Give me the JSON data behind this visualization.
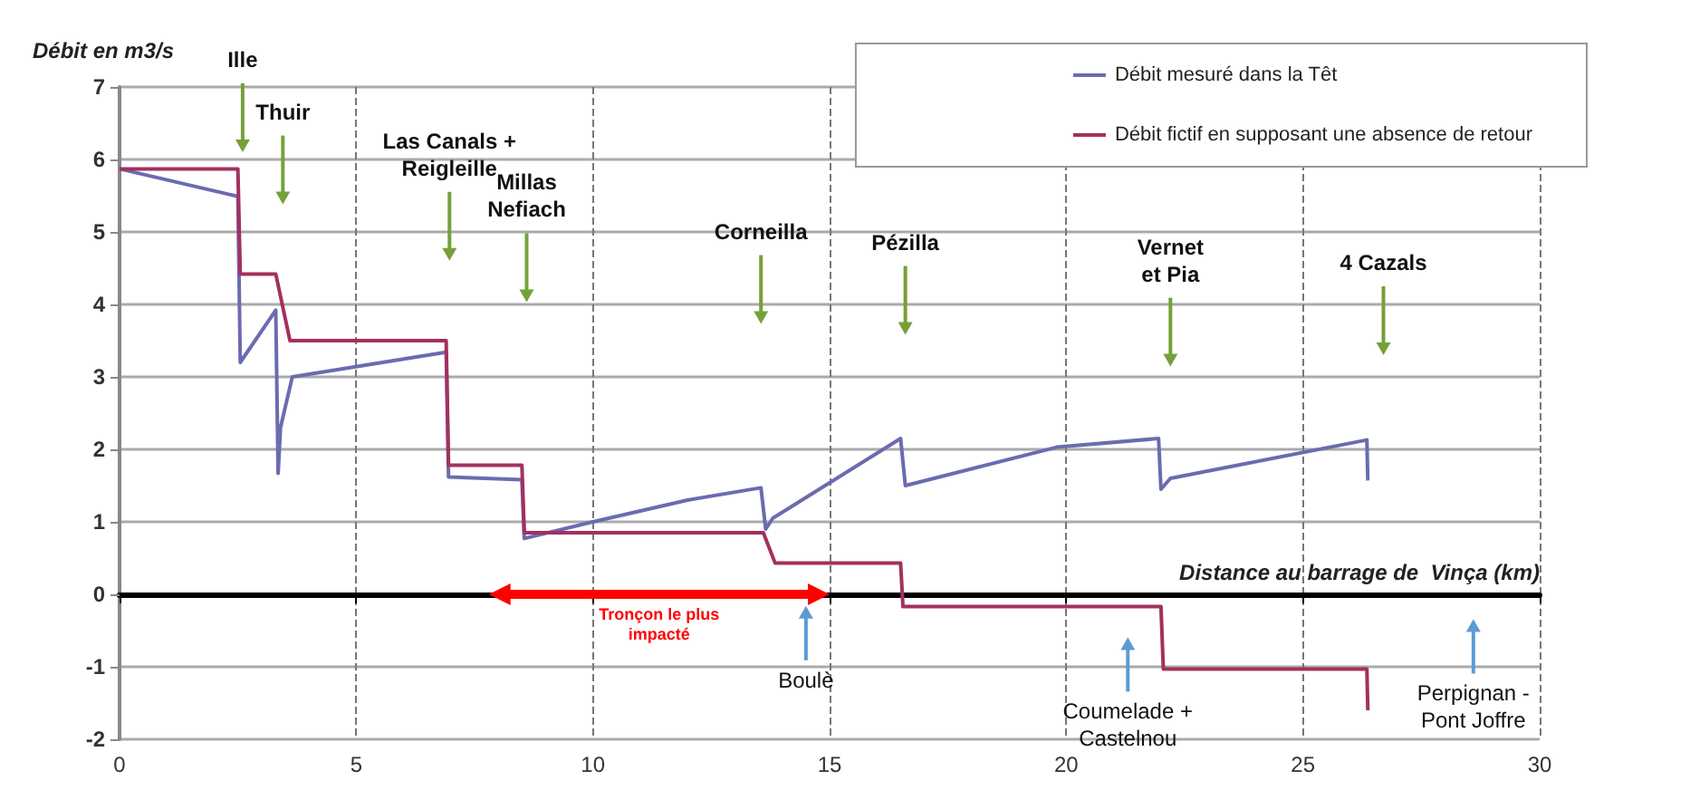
{
  "chart_data": {
    "type": "line",
    "ylabel": "Débit en m3/s",
    "xlabel": "Distance au barrage de  Vinça (km)",
    "xlim": [
      0,
      30
    ],
    "xticks": [
      0,
      5,
      10,
      15,
      20,
      25,
      30
    ],
    "ylim": [
      -2,
      7
    ],
    "yticks": [
      -2,
      -1,
      0,
      1,
      2,
      3,
      4,
      5,
      6,
      7
    ],
    "grid": true,
    "legend": "top right",
    "marker": "none",
    "line_style": "solid",
    "series": [
      {
        "name": "Débit mesuré dans la Têt",
        "color": "#6b6bb0",
        "x": [
          0,
          2.5,
          2.55,
          3.3,
          3.35,
          3.4,
          3.65,
          6.9,
          6.95,
          8.5,
          8.55,
          10,
          12,
          13.55,
          13.65,
          13.8,
          16.5,
          16.6,
          19.8,
          21.95,
          22.0,
          22.2,
          26.35,
          26.37
        ],
        "values": [
          5.87,
          5.49,
          3.2,
          3.92,
          1.67,
          2.3,
          3.0,
          3.34,
          1.62,
          1.58,
          0.77,
          1.0,
          1.3,
          1.47,
          0.9,
          1.05,
          2.15,
          1.5,
          2.03,
          2.15,
          1.45,
          1.6,
          2.13,
          1.57
        ]
      },
      {
        "name": "Débit fictif en supposant une absence de retour",
        "color": "#a3305f",
        "x": [
          0,
          2.5,
          2.55,
          3.3,
          3.6,
          6.9,
          6.95,
          8.5,
          8.55,
          13.6,
          13.85,
          16.5,
          16.55,
          22.0,
          22.05,
          26.35,
          26.37
        ],
        "values": [
          5.87,
          5.87,
          4.42,
          4.42,
          3.5,
          3.5,
          1.78,
          1.78,
          0.85,
          0.85,
          0.43,
          0.43,
          -0.17,
          -0.17,
          -1.03,
          -1.03,
          -1.6
        ]
      }
    ],
    "annotations": [
      "Tronçon le plus impacté",
      "Ille",
      "Thuir",
      "Las Canals +\nReigleille",
      "Millas\nNefiach",
      "Corneilla",
      "Pézilla",
      "Vernet\net Pia",
      "4 Cazals",
      "Boulè",
      "Coumelade +\nCastelnou",
      "Perpignan -\nPont Joffre"
    ]
  }
}
